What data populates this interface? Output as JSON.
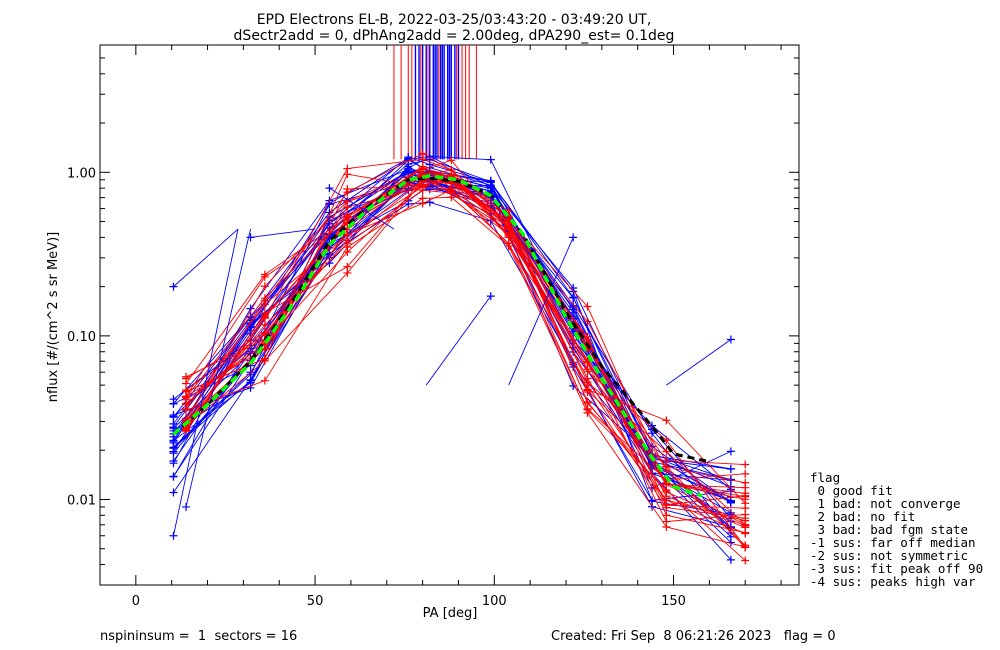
{
  "title_line1": "EPD Electrons EL-B, 2022-03-25/03:43:20 - 03:49:20 UT,",
  "title_line2": "dSectr2add = 0, dPhAng2add = 2.00deg, dPA290_est=   0.1deg",
  "footer_left": "nspininsum =  1  sectors = 16",
  "footer_right": "Created: Fri Sep  8 06:21:26 2023   flag = 0",
  "legend": {
    "title": "flag",
    "lines": [
      " 0 good fit",
      " 1 bad: not converge",
      " 2 bad: no fit",
      " 3 bad: bad fgm state",
      "-1 sus: far off median",
      "-2 sus: not symmetric",
      "-3 sus: fit peak off 90",
      "-4 sus: peaks high var"
    ]
  },
  "colors": {
    "red_series": "#ff0000",
    "blue_series": "#0000ff",
    "median_dashed": "#000000",
    "fit_dashed": "#00ff00"
  },
  "chart_data": {
    "type": "line",
    "xlabel": "PA [deg]",
    "ylabel": "nflux [#/(cm^2 s sr MeV)]",
    "xlim": [
      -10,
      185
    ],
    "ylim": [
      0.003,
      6.0
    ],
    "yscale": "log",
    "x_ticks": [
      0,
      50,
      100,
      150
    ],
    "x_tick_labels": [
      "0",
      "50",
      "100",
      "150"
    ],
    "y_ticks": [
      0.01,
      0.1,
      1.0
    ],
    "y_tick_labels": [
      "0.01",
      "0.10",
      "1.00"
    ],
    "pa_bins": [
      10.5,
      14,
      32,
      36,
      54,
      59,
      76,
      80,
      82,
      88,
      99,
      104,
      122,
      126,
      144,
      148,
      166,
      170
    ],
    "base_profile": [
      0.022,
      0.03,
      0.08,
      0.12,
      0.4,
      0.52,
      0.92,
      0.96,
      0.93,
      0.9,
      0.72,
      0.45,
      0.11,
      0.065,
      0.018,
      0.014,
      0.009,
      0.0085
    ],
    "series_groups": [
      {
        "color": "blue",
        "count": 26,
        "bins": [
          0,
          2,
          4,
          6,
          8,
          10,
          12,
          14,
          16
        ]
      },
      {
        "color": "red",
        "count": 24,
        "bins": [
          1,
          3,
          5,
          7,
          9,
          11,
          13,
          15,
          17
        ]
      }
    ],
    "outlier_points": [
      {
        "x": 10.5,
        "y": 0.2
      },
      {
        "x": 32,
        "y": 0.4
      },
      {
        "x": 54,
        "y": 0.8
      },
      {
        "x": 99,
        "y": 0.175
      },
      {
        "x": 122,
        "y": 0.4
      },
      {
        "x": 166,
        "y": 0.095
      },
      {
        "x": 10.5,
        "y": 0.006
      },
      {
        "x": 14,
        "y": 0.009
      }
    ],
    "median_curve": {
      "x": [
        10.5,
        20,
        32,
        45,
        54,
        65,
        76,
        82,
        90,
        99,
        108,
        120,
        130,
        144,
        150,
        160
      ],
      "y": [
        0.025,
        0.038,
        0.07,
        0.18,
        0.38,
        0.62,
        0.9,
        0.92,
        0.88,
        0.73,
        0.42,
        0.14,
        0.065,
        0.028,
        0.019,
        0.017
      ]
    },
    "fit_curve": {
      "x": [
        10.5,
        20,
        32,
        45,
        54,
        65,
        76,
        82,
        90,
        99,
        108,
        120,
        130,
        144,
        150,
        158
      ],
      "y": [
        0.025,
        0.038,
        0.068,
        0.17,
        0.36,
        0.6,
        0.9,
        0.95,
        0.9,
        0.72,
        0.42,
        0.13,
        0.055,
        0.018,
        0.012,
        0.0105
      ]
    },
    "vertical_markers": {
      "y_bottom": 1.2,
      "blue_x": [
        79,
        80,
        81,
        82,
        83,
        84,
        85,
        86,
        87,
        88,
        89,
        90,
        83.5,
        85.5,
        87.5,
        78
      ],
      "red_x": [
        72,
        74,
        76,
        77,
        79.5,
        81.5,
        83,
        84.5,
        86,
        87,
        89.5,
        91,
        92,
        93,
        95
      ]
    }
  }
}
